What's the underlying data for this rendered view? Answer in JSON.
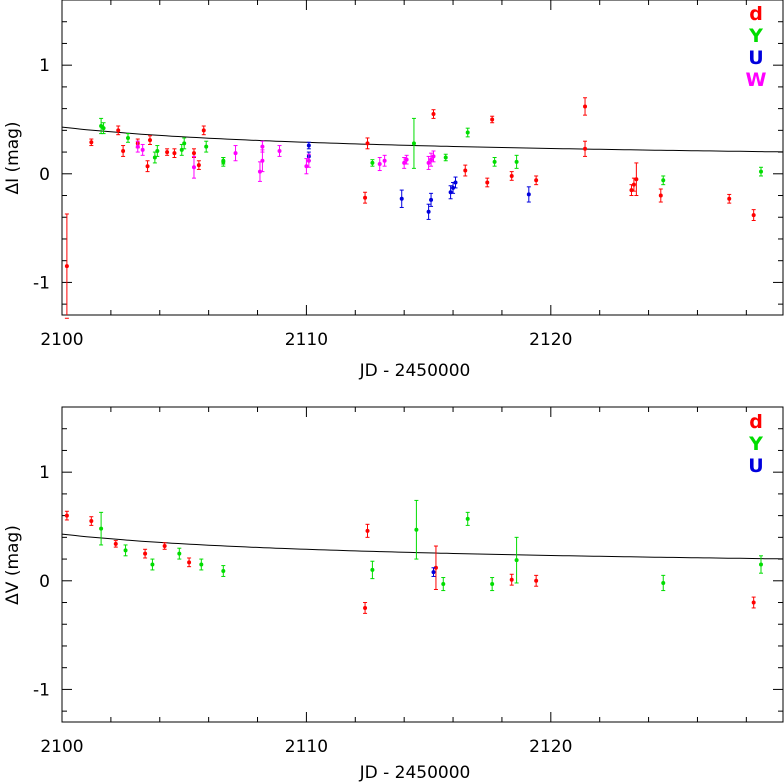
{
  "chart_data": [
    {
      "type": "scatter",
      "xlabel": "JD - 2450000",
      "ylabel": "ΔI (mag)",
      "xlim": [
        2100,
        2129.5
      ],
      "ylim": [
        -1.3,
        1.6
      ],
      "x_ticks": [
        2100,
        2110,
        2120
      ],
      "y_ticks": [
        -1,
        0,
        1
      ],
      "grid": false,
      "legend_position": "top-right",
      "fit_curve": {
        "a": 0.43,
        "b": 0.12,
        "c": 0.0
      },
      "series": [
        {
          "name": "d",
          "color": "#ff0000",
          "points": [
            {
              "x": 2100.2,
              "y": -0.85,
              "err": 0.48
            },
            {
              "x": 2101.2,
              "y": 0.29,
              "err": 0.03
            },
            {
              "x": 2102.3,
              "y": 0.4,
              "err": 0.04
            },
            {
              "x": 2102.5,
              "y": 0.21,
              "err": 0.05
            },
            {
              "x": 2103.1,
              "y": 0.28,
              "err": 0.04
            },
            {
              "x": 2103.5,
              "y": 0.07,
              "err": 0.05
            },
            {
              "x": 2103.6,
              "y": 0.31,
              "err": 0.04
            },
            {
              "x": 2104.3,
              "y": 0.2,
              "err": 0.03
            },
            {
              "x": 2104.6,
              "y": 0.19,
              "err": 0.04
            },
            {
              "x": 2105.4,
              "y": 0.19,
              "err": 0.04
            },
            {
              "x": 2105.6,
              "y": 0.08,
              "err": 0.04
            },
            {
              "x": 2105.8,
              "y": 0.4,
              "err": 0.04
            },
            {
              "x": 2112.4,
              "y": -0.22,
              "err": 0.05
            },
            {
              "x": 2112.5,
              "y": 0.28,
              "err": 0.05
            },
            {
              "x": 2115.2,
              "y": 0.55,
              "err": 0.04
            },
            {
              "x": 2116.5,
              "y": 0.03,
              "err": 0.05
            },
            {
              "x": 2117.4,
              "y": -0.08,
              "err": 0.04
            },
            {
              "x": 2117.6,
              "y": 0.5,
              "err": 0.03
            },
            {
              "x": 2118.4,
              "y": -0.02,
              "err": 0.04
            },
            {
              "x": 2119.4,
              "y": -0.06,
              "err": 0.04
            },
            {
              "x": 2121.4,
              "y": 0.62,
              "err": 0.08
            },
            {
              "x": 2121.4,
              "y": 0.23,
              "err": 0.07
            },
            {
              "x": 2123.3,
              "y": -0.15,
              "err": 0.05
            },
            {
              "x": 2123.4,
              "y": -0.1,
              "err": 0.06
            },
            {
              "x": 2123.5,
              "y": -0.05,
              "err": 0.15
            },
            {
              "x": 2124.5,
              "y": -0.2,
              "err": 0.06
            },
            {
              "x": 2127.3,
              "y": -0.23,
              "err": 0.04
            },
            {
              "x": 2128.3,
              "y": -0.38,
              "err": 0.05
            }
          ]
        },
        {
          "name": "Y",
          "color": "#00dd00",
          "points": [
            {
              "x": 2101.6,
              "y": 0.44,
              "err": 0.07
            },
            {
              "x": 2101.7,
              "y": 0.42,
              "err": 0.05
            },
            {
              "x": 2102.7,
              "y": 0.33,
              "err": 0.04
            },
            {
              "x": 2103.8,
              "y": 0.15,
              "err": 0.05
            },
            {
              "x": 2103.9,
              "y": 0.21,
              "err": 0.05
            },
            {
              "x": 2104.9,
              "y": 0.22,
              "err": 0.05
            },
            {
              "x": 2105.0,
              "y": 0.28,
              "err": 0.05
            },
            {
              "x": 2105.9,
              "y": 0.25,
              "err": 0.05
            },
            {
              "x": 2106.6,
              "y": 0.11,
              "err": 0.04
            },
            {
              "x": 2106.6,
              "y": 0.12,
              "err": 0.03
            },
            {
              "x": 2112.7,
              "y": 0.1,
              "err": 0.03
            },
            {
              "x": 2114.4,
              "y": 0.28,
              "err": 0.23
            },
            {
              "x": 2115.7,
              "y": 0.15,
              "err": 0.03
            },
            {
              "x": 2116.6,
              "y": 0.38,
              "err": 0.04
            },
            {
              "x": 2117.7,
              "y": 0.11,
              "err": 0.04
            },
            {
              "x": 2118.6,
              "y": 0.11,
              "err": 0.06
            },
            {
              "x": 2124.6,
              "y": -0.06,
              "err": 0.04
            },
            {
              "x": 2128.6,
              "y": 0.02,
              "err": 0.04
            }
          ]
        },
        {
          "name": "U",
          "color": "#0000dd",
          "points": [
            {
              "x": 2110.1,
              "y": 0.26,
              "err": 0.03
            },
            {
              "x": 2110.1,
              "y": 0.16,
              "err": 0.04
            },
            {
              "x": 2113.9,
              "y": -0.23,
              "err": 0.08
            },
            {
              "x": 2115.0,
              "y": -0.35,
              "err": 0.07
            },
            {
              "x": 2115.1,
              "y": -0.24,
              "err": 0.06
            },
            {
              "x": 2115.9,
              "y": -0.17,
              "err": 0.06
            },
            {
              "x": 2116.0,
              "y": -0.13,
              "err": 0.05
            },
            {
              "x": 2116.1,
              "y": -0.08,
              "err": 0.05
            },
            {
              "x": 2119.1,
              "y": -0.19,
              "err": 0.07
            }
          ]
        },
        {
          "name": "W",
          "color": "#ff00ff",
          "points": [
            {
              "x": 2103.1,
              "y": 0.25,
              "err": 0.05
            },
            {
              "x": 2103.3,
              "y": 0.22,
              "err": 0.05
            },
            {
              "x": 2105.4,
              "y": 0.06,
              "err": 0.1
            },
            {
              "x": 2107.1,
              "y": 0.19,
              "err": 0.07
            },
            {
              "x": 2108.1,
              "y": 0.02,
              "err": 0.09
            },
            {
              "x": 2108.2,
              "y": 0.12,
              "err": 0.1
            },
            {
              "x": 2108.2,
              "y": 0.25,
              "err": 0.05
            },
            {
              "x": 2108.9,
              "y": 0.21,
              "err": 0.05
            },
            {
              "x": 2110.0,
              "y": 0.07,
              "err": 0.07
            },
            {
              "x": 2110.1,
              "y": 0.12,
              "err": 0.06
            },
            {
              "x": 2113.0,
              "y": 0.09,
              "err": 0.06
            },
            {
              "x": 2113.2,
              "y": 0.12,
              "err": 0.05
            },
            {
              "x": 2114.0,
              "y": 0.1,
              "err": 0.05
            },
            {
              "x": 2114.1,
              "y": 0.13,
              "err": 0.04
            },
            {
              "x": 2115.0,
              "y": 0.1,
              "err": 0.06
            },
            {
              "x": 2115.1,
              "y": 0.13,
              "err": 0.06
            },
            {
              "x": 2115.2,
              "y": 0.16,
              "err": 0.05
            }
          ]
        }
      ]
    },
    {
      "type": "scatter",
      "xlabel": "JD - 2450000",
      "ylabel": "ΔV (mag)",
      "xlim": [
        2100,
        2129.5
      ],
      "ylim": [
        -1.3,
        1.6
      ],
      "x_ticks": [
        2100,
        2110,
        2120
      ],
      "y_ticks": [
        -1,
        0,
        1
      ],
      "grid": false,
      "legend_position": "top-right",
      "fit_curve": {
        "a": 0.43,
        "b": 0.12,
        "c": 0.0
      },
      "series": [
        {
          "name": "d",
          "color": "#ff0000",
          "points": [
            {
              "x": 2100.2,
              "y": 0.6,
              "err": 0.04
            },
            {
              "x": 2101.2,
              "y": 0.55,
              "err": 0.04
            },
            {
              "x": 2102.2,
              "y": 0.34,
              "err": 0.03
            },
            {
              "x": 2103.4,
              "y": 0.25,
              "err": 0.04
            },
            {
              "x": 2104.2,
              "y": 0.32,
              "err": 0.03
            },
            {
              "x": 2105.2,
              "y": 0.17,
              "err": 0.04
            },
            {
              "x": 2112.4,
              "y": -0.25,
              "err": 0.05
            },
            {
              "x": 2112.5,
              "y": 0.46,
              "err": 0.06
            },
            {
              "x": 2115.3,
              "y": 0.12,
              "err": 0.2
            },
            {
              "x": 2118.4,
              "y": 0.01,
              "err": 0.05
            },
            {
              "x": 2119.4,
              "y": 0.0,
              "err": 0.05
            },
            {
              "x": 2128.3,
              "y": -0.2,
              "err": 0.05
            }
          ]
        },
        {
          "name": "Y",
          "color": "#00dd00",
          "points": [
            {
              "x": 2101.6,
              "y": 0.48,
              "err": 0.15
            },
            {
              "x": 2102.6,
              "y": 0.28,
              "err": 0.05
            },
            {
              "x": 2103.7,
              "y": 0.15,
              "err": 0.05
            },
            {
              "x": 2104.8,
              "y": 0.25,
              "err": 0.05
            },
            {
              "x": 2105.7,
              "y": 0.15,
              "err": 0.05
            },
            {
              "x": 2106.6,
              "y": 0.09,
              "err": 0.05
            },
            {
              "x": 2112.7,
              "y": 0.1,
              "err": 0.08
            },
            {
              "x": 2114.5,
              "y": 0.47,
              "err": 0.27
            },
            {
              "x": 2115.6,
              "y": -0.03,
              "err": 0.06
            },
            {
              "x": 2116.6,
              "y": 0.57,
              "err": 0.06
            },
            {
              "x": 2117.6,
              "y": -0.03,
              "err": 0.06
            },
            {
              "x": 2118.6,
              "y": 0.19,
              "err": 0.21
            },
            {
              "x": 2124.6,
              "y": -0.02,
              "err": 0.07
            },
            {
              "x": 2128.6,
              "y": 0.15,
              "err": 0.08
            }
          ]
        },
        {
          "name": "U",
          "color": "#0000dd",
          "points": [
            {
              "x": 2115.2,
              "y": 0.08,
              "err": 0.04
            }
          ]
        }
      ]
    }
  ]
}
